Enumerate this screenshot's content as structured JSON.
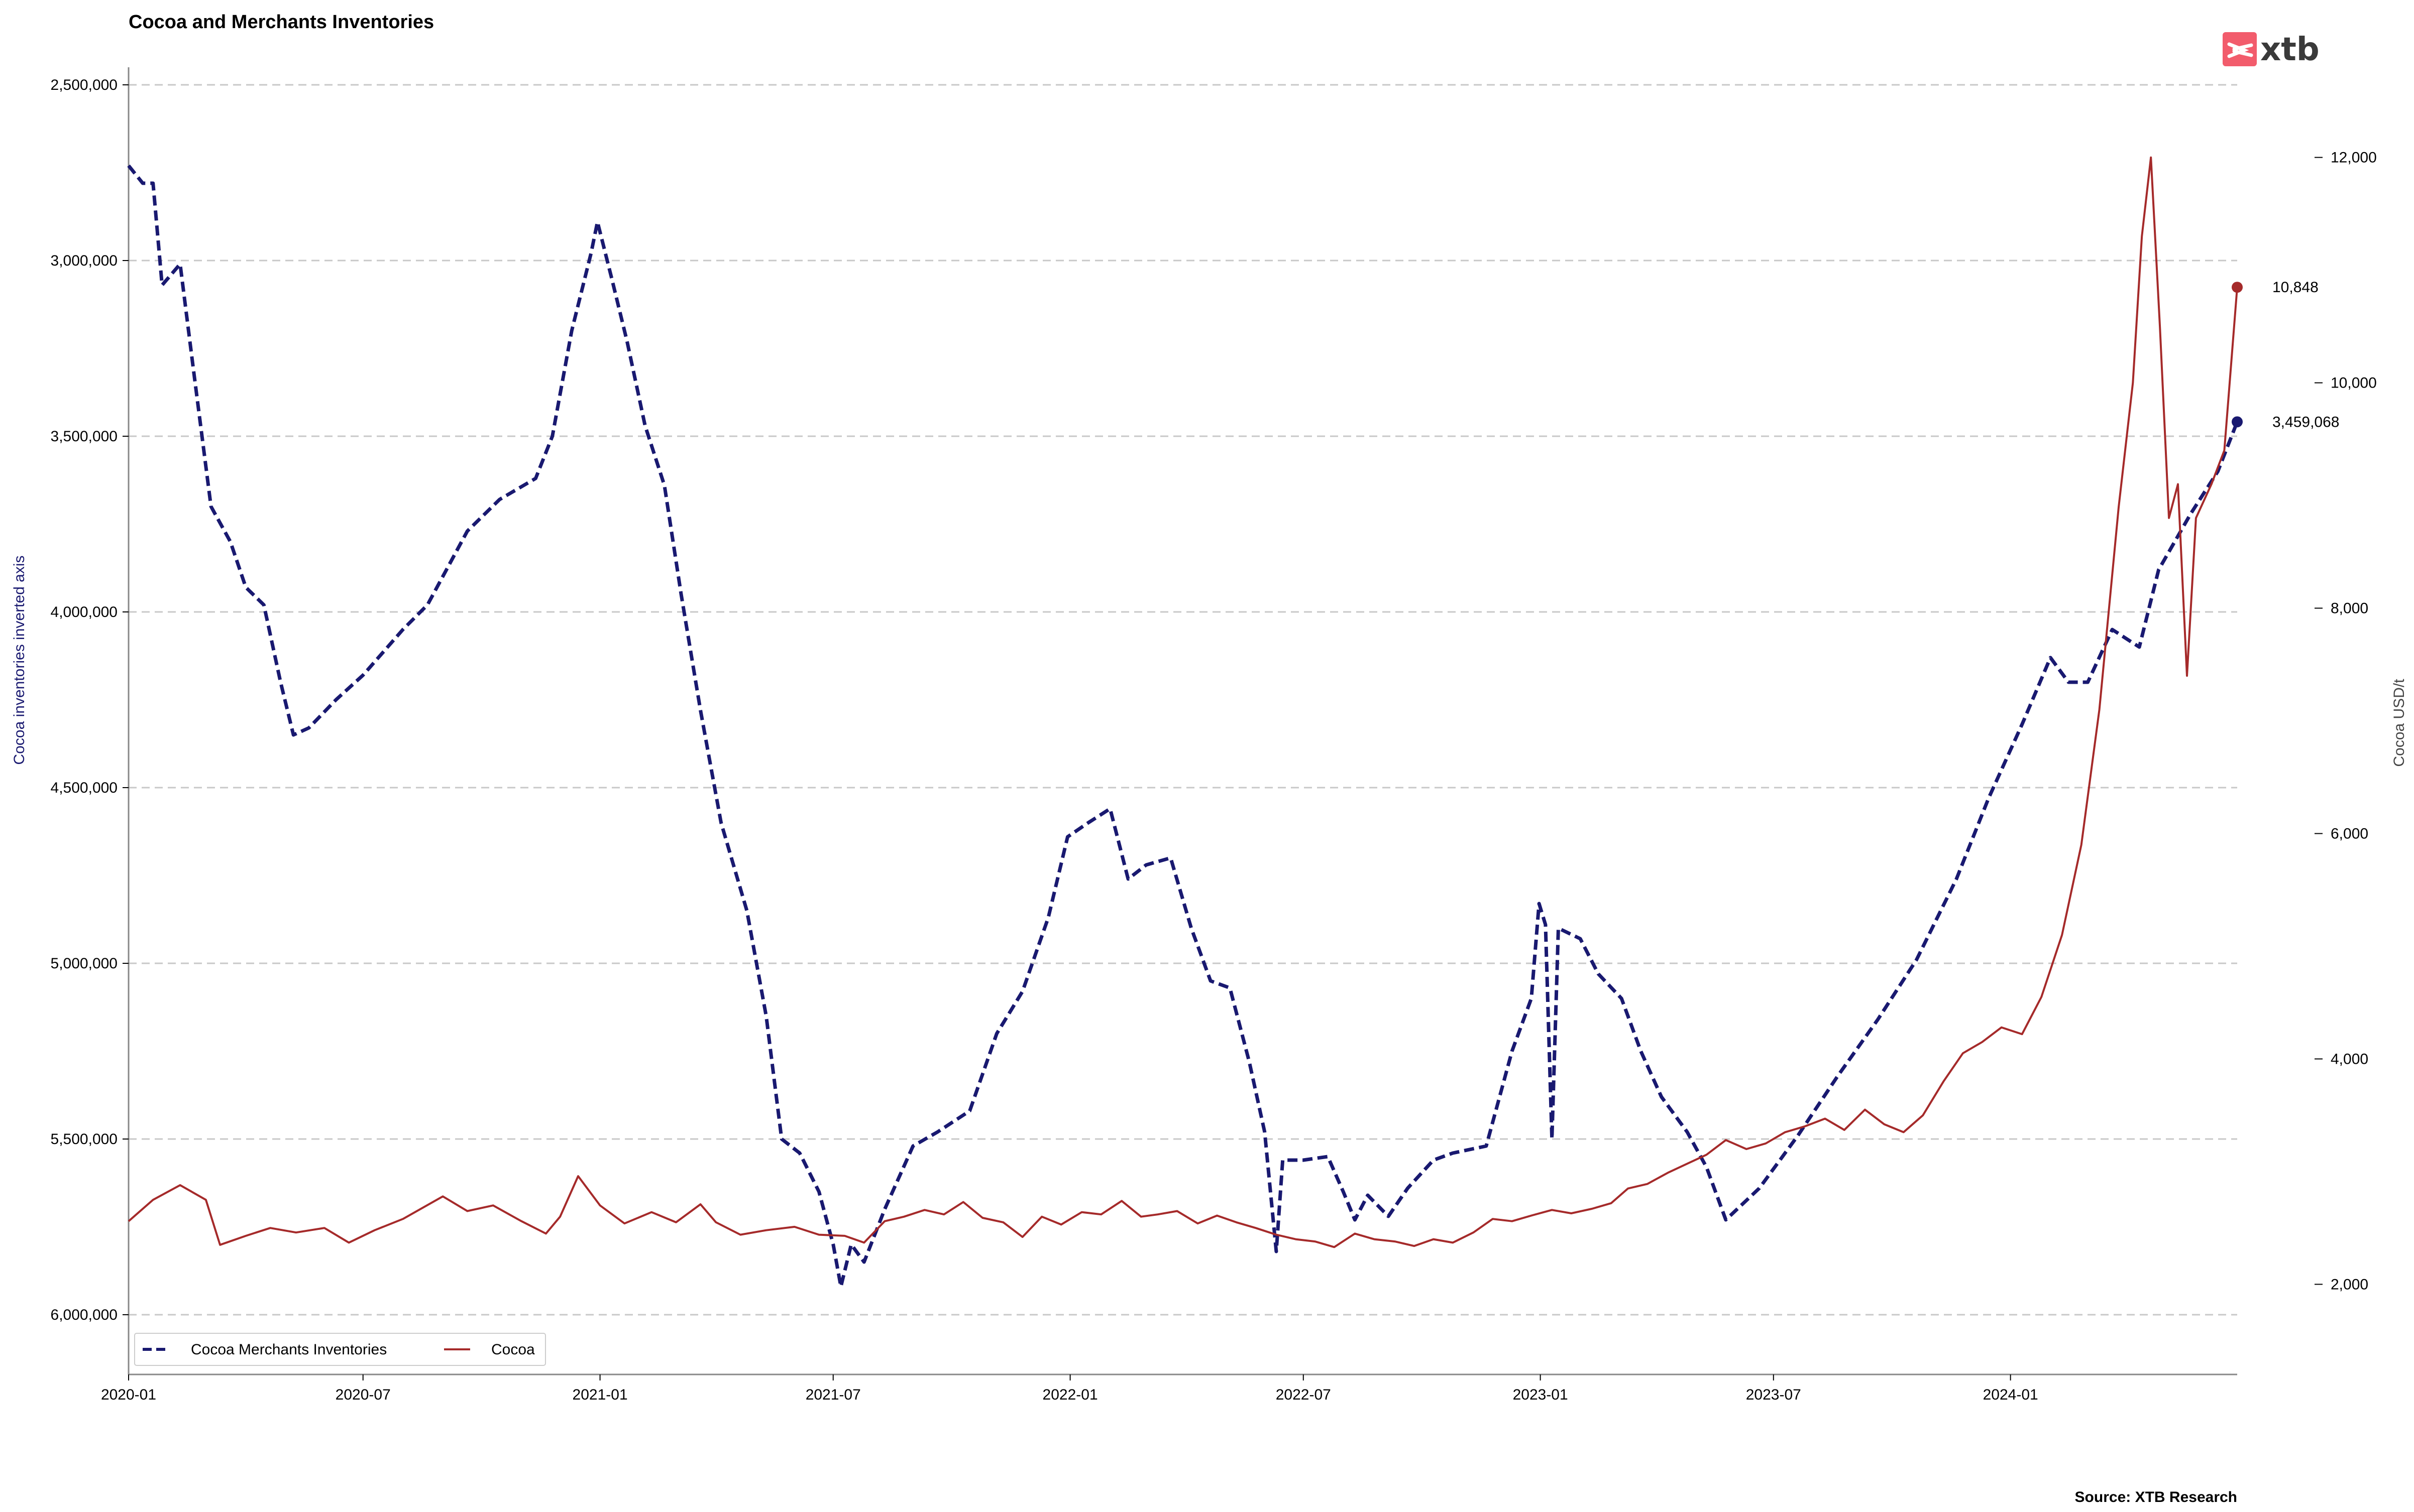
{
  "title": "Cocoa and Merchants Inventories",
  "source": "Source: XTB Research",
  "logo": {
    "text": "xtb",
    "color": "#f25c6c",
    "icon": "xtb-logo-icon"
  },
  "colors": {
    "inventories": "#191970",
    "cocoa": "#a52a2a",
    "grid": "#c8c8c8",
    "axis": "#888888"
  },
  "chart_data": {
    "type": "line",
    "title": "Cocoa and Merchants Inventories",
    "x_range": [
      "2020-01-01",
      "2024-06-25"
    ],
    "x_ticks": [
      "2020-01",
      "2020-07",
      "2021-01",
      "2021-07",
      "2022-01",
      "2022-07",
      "2023-01",
      "2023-07",
      "2024-01"
    ],
    "left_axis": {
      "label": "Cocoa inventories inverted axis",
      "inverted": true,
      "range": [
        2450000,
        6170000
      ],
      "ticks": [
        2500000,
        3000000,
        3500000,
        4000000,
        4500000,
        5000000,
        5500000,
        6000000
      ],
      "tick_labels": [
        "2,500,000",
        "3,000,000",
        "3,500,000",
        "4,000,000",
        "4,500,000",
        "5,000,000",
        "5,500,000",
        "6,000,000"
      ]
    },
    "right_axis": {
      "label": "Cocoa USD/t",
      "range": [
        1200,
        12800
      ],
      "ticks": [
        2000,
        4000,
        6000,
        8000,
        10000,
        12000
      ],
      "tick_labels": [
        "2,000",
        "4,000",
        "6,000",
        "8,000",
        "10,000",
        "12,000"
      ]
    },
    "grid": "horizontal dashed",
    "legend_position": "bottom-left",
    "series": [
      {
        "name": "Cocoa Merchants Inventories",
        "axis": "left",
        "style": "dashed",
        "last_value_label": "3,459,068",
        "points": [
          [
            "2020-01-01",
            2730000
          ],
          [
            "2020-01-12",
            2780000
          ],
          [
            "2020-01-20",
            2780000
          ],
          [
            "2020-01-27",
            3070000
          ],
          [
            "2020-02-10",
            3010000
          ],
          [
            "2020-02-20",
            3300000
          ],
          [
            "2020-03-05",
            3700000
          ],
          [
            "2020-03-20",
            3800000
          ],
          [
            "2020-04-01",
            3930000
          ],
          [
            "2020-04-15",
            3980000
          ],
          [
            "2020-04-28",
            4200000
          ],
          [
            "2020-05-08",
            4350000
          ],
          [
            "2020-05-20",
            4330000
          ],
          [
            "2020-06-10",
            4250000
          ],
          [
            "2020-07-01",
            4180000
          ],
          [
            "2020-08-01",
            4050000
          ],
          [
            "2020-08-20",
            3980000
          ],
          [
            "2020-09-20",
            3770000
          ],
          [
            "2020-10-15",
            3680000
          ],
          [
            "2020-11-12",
            3620000
          ],
          [
            "2020-11-25",
            3500000
          ],
          [
            "2020-12-10",
            3200000
          ],
          [
            "2020-12-25",
            2980000
          ],
          [
            "2020-12-30",
            2890000
          ],
          [
            "2021-01-10",
            3050000
          ],
          [
            "2021-01-22",
            3230000
          ],
          [
            "2021-02-05",
            3470000
          ],
          [
            "2021-02-20",
            3640000
          ],
          [
            "2021-03-05",
            3950000
          ],
          [
            "2021-03-20",
            4280000
          ],
          [
            "2021-04-05",
            4600000
          ],
          [
            "2021-04-25",
            4850000
          ],
          [
            "2021-05-10",
            5150000
          ],
          [
            "2021-05-22",
            5500000
          ],
          [
            "2021-06-05",
            5540000
          ],
          [
            "2021-06-20",
            5650000
          ],
          [
            "2021-07-01",
            5800000
          ],
          [
            "2021-07-07",
            5920000
          ],
          [
            "2021-07-15",
            5800000
          ],
          [
            "2021-07-25",
            5850000
          ],
          [
            "2021-08-10",
            5700000
          ],
          [
            "2021-09-01",
            5520000
          ],
          [
            "2021-09-20",
            5480000
          ],
          [
            "2021-10-15",
            5420000
          ],
          [
            "2021-11-05",
            5200000
          ],
          [
            "2021-11-25",
            5080000
          ],
          [
            "2021-12-15",
            4870000
          ],
          [
            "2021-12-30",
            4640000
          ],
          [
            "2022-01-15",
            4600000
          ],
          [
            "2022-02-01",
            4560000
          ],
          [
            "2022-02-15",
            4760000
          ],
          [
            "2022-03-01",
            4720000
          ],
          [
            "2022-03-20",
            4700000
          ],
          [
            "2022-04-05",
            4900000
          ],
          [
            "2022-04-20",
            5050000
          ],
          [
            "2022-05-05",
            5070000
          ],
          [
            "2022-05-20",
            5280000
          ],
          [
            "2022-06-01",
            5480000
          ],
          [
            "2022-06-10",
            5820000
          ],
          [
            "2022-06-15",
            5560000
          ],
          [
            "2022-07-01",
            5560000
          ],
          [
            "2022-07-20",
            5550000
          ],
          [
            "2022-08-01",
            5650000
          ],
          [
            "2022-08-10",
            5730000
          ],
          [
            "2022-08-20",
            5660000
          ],
          [
            "2022-09-05",
            5720000
          ],
          [
            "2022-09-20",
            5640000
          ],
          [
            "2022-10-10",
            5560000
          ],
          [
            "2022-10-25",
            5540000
          ],
          [
            "2022-11-20",
            5520000
          ],
          [
            "2022-12-10",
            5250000
          ],
          [
            "2022-12-25",
            5100000
          ],
          [
            "2022-12-31",
            4830000
          ],
          [
            "2023-01-05",
            4890000
          ],
          [
            "2023-01-10",
            5500000
          ],
          [
            "2023-01-15",
            4900000
          ],
          [
            "2023-02-01",
            4930000
          ],
          [
            "2023-02-15",
            5030000
          ],
          [
            "2023-03-05",
            5100000
          ],
          [
            "2023-03-20",
            5250000
          ],
          [
            "2023-04-05",
            5380000
          ],
          [
            "2023-04-25",
            5480000
          ],
          [
            "2023-05-10",
            5580000
          ],
          [
            "2023-05-25",
            5730000
          ],
          [
            "2023-06-20",
            5640000
          ],
          [
            "2023-07-20",
            5490000
          ],
          [
            "2023-08-20",
            5320000
          ],
          [
            "2023-09-20",
            5160000
          ],
          [
            "2023-10-20",
            4990000
          ],
          [
            "2023-11-20",
            4760000
          ],
          [
            "2023-12-15",
            4530000
          ],
          [
            "2024-01-10",
            4320000
          ],
          [
            "2024-02-01",
            4130000
          ],
          [
            "2024-02-15",
            4200000
          ],
          [
            "2024-03-01",
            4200000
          ],
          [
            "2024-03-20",
            4050000
          ],
          [
            "2024-04-10",
            4100000
          ],
          [
            "2024-04-25",
            3880000
          ],
          [
            "2024-05-20",
            3720000
          ],
          [
            "2024-06-10",
            3600000
          ],
          [
            "2024-06-25",
            3459068
          ]
        ]
      },
      {
        "name": "Cocoa",
        "axis": "right",
        "style": "solid",
        "last_value_label": "10,848",
        "points": [
          [
            "2020-01-01",
            2560
          ],
          [
            "2020-01-20",
            2750
          ],
          [
            "2020-02-10",
            2880
          ],
          [
            "2020-03-01",
            2750
          ],
          [
            "2020-03-12",
            2350
          ],
          [
            "2020-04-01",
            2430
          ],
          [
            "2020-04-20",
            2500
          ],
          [
            "2020-05-10",
            2460
          ],
          [
            "2020-06-01",
            2500
          ],
          [
            "2020-06-20",
            2370
          ],
          [
            "2020-07-10",
            2480
          ],
          [
            "2020-08-01",
            2580
          ],
          [
            "2020-09-01",
            2780
          ],
          [
            "2020-09-20",
            2650
          ],
          [
            "2020-10-10",
            2700
          ],
          [
            "2020-11-01",
            2560
          ],
          [
            "2020-11-20",
            2450
          ],
          [
            "2020-12-01",
            2600
          ],
          [
            "2020-12-15",
            2960
          ],
          [
            "2021-01-01",
            2700
          ],
          [
            "2021-01-20",
            2540
          ],
          [
            "2021-02-10",
            2640
          ],
          [
            "2021-03-01",
            2550
          ],
          [
            "2021-03-20",
            2710
          ],
          [
            "2021-04-01",
            2550
          ],
          [
            "2021-04-20",
            2440
          ],
          [
            "2021-05-10",
            2480
          ],
          [
            "2021-06-01",
            2510
          ],
          [
            "2021-06-20",
            2440
          ],
          [
            "2021-07-10",
            2430
          ],
          [
            "2021-07-25",
            2370
          ],
          [
            "2021-08-10",
            2560
          ],
          [
            "2021-08-25",
            2600
          ],
          [
            "2021-09-10",
            2660
          ],
          [
            "2021-09-25",
            2620
          ],
          [
            "2021-10-10",
            2730
          ],
          [
            "2021-10-25",
            2590
          ],
          [
            "2021-11-10",
            2550
          ],
          [
            "2021-11-25",
            2420
          ],
          [
            "2021-12-10",
            2600
          ],
          [
            "2021-12-25",
            2530
          ],
          [
            "2022-01-10",
            2640
          ],
          [
            "2022-01-25",
            2620
          ],
          [
            "2022-02-10",
            2740
          ],
          [
            "2022-02-25",
            2600
          ],
          [
            "2022-03-10",
            2620
          ],
          [
            "2022-03-25",
            2650
          ],
          [
            "2022-04-10",
            2540
          ],
          [
            "2022-04-25",
            2610
          ],
          [
            "2022-05-10",
            2550
          ],
          [
            "2022-05-25",
            2500
          ],
          [
            "2022-06-10",
            2440
          ],
          [
            "2022-06-25",
            2400
          ],
          [
            "2022-07-10",
            2380
          ],
          [
            "2022-07-25",
            2330
          ],
          [
            "2022-08-10",
            2450
          ],
          [
            "2022-08-25",
            2400
          ],
          [
            "2022-09-10",
            2380
          ],
          [
            "2022-09-25",
            2340
          ],
          [
            "2022-10-10",
            2400
          ],
          [
            "2022-10-25",
            2370
          ],
          [
            "2022-11-10",
            2460
          ],
          [
            "2022-11-25",
            2580
          ],
          [
            "2022-12-10",
            2560
          ],
          [
            "2022-12-25",
            2610
          ],
          [
            "2023-01-10",
            2660
          ],
          [
            "2023-01-25",
            2630
          ],
          [
            "2023-02-10",
            2670
          ],
          [
            "2023-02-25",
            2720
          ],
          [
            "2023-03-10",
            2850
          ],
          [
            "2023-03-25",
            2890
          ],
          [
            "2023-04-10",
            2990
          ],
          [
            "2023-04-25",
            3070
          ],
          [
            "2023-05-10",
            3150
          ],
          [
            "2023-05-25",
            3280
          ],
          [
            "2023-06-10",
            3200
          ],
          [
            "2023-06-25",
            3250
          ],
          [
            "2023-07-10",
            3350
          ],
          [
            "2023-07-25",
            3400
          ],
          [
            "2023-08-10",
            3470
          ],
          [
            "2023-08-25",
            3370
          ],
          [
            "2023-09-10",
            3550
          ],
          [
            "2023-09-25",
            3420
          ],
          [
            "2023-10-10",
            3350
          ],
          [
            "2023-10-25",
            3500
          ],
          [
            "2023-11-10",
            3800
          ],
          [
            "2023-11-25",
            4050
          ],
          [
            "2023-12-10",
            4150
          ],
          [
            "2023-12-25",
            4280
          ],
          [
            "2024-01-10",
            4220
          ],
          [
            "2024-01-25",
            4550
          ],
          [
            "2024-02-10",
            5100
          ],
          [
            "2024-02-25",
            5900
          ],
          [
            "2024-03-10",
            7100
          ],
          [
            "2024-03-25",
            8900
          ],
          [
            "2024-04-05",
            10000
          ],
          [
            "2024-04-12",
            11300
          ],
          [
            "2024-04-19",
            12000
          ],
          [
            "2024-04-26",
            10500
          ],
          [
            "2024-05-03",
            8800
          ],
          [
            "2024-05-10",
            9100
          ],
          [
            "2024-05-17",
            7400
          ],
          [
            "2024-05-24",
            8800
          ],
          [
            "2024-06-05",
            9100
          ],
          [
            "2024-06-15",
            9400
          ],
          [
            "2024-06-25",
            10848
          ]
        ]
      }
    ]
  }
}
